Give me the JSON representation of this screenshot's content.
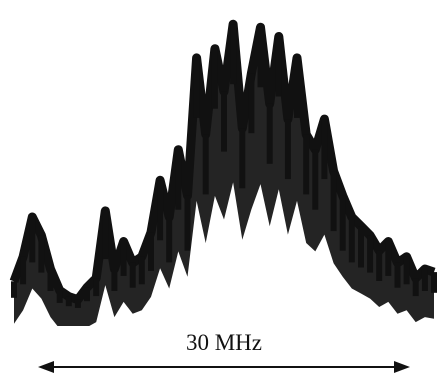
{
  "chart_data": {
    "type": "line",
    "title": "",
    "xlabel": "",
    "ylabel": "",
    "x_axis_visible": false,
    "y_axis_visible": false,
    "grid": false,
    "legend": "none",
    "annotations": [
      {
        "text": "30 MHz",
        "kind": "horizontal double-headed scale arrow"
      }
    ],
    "series": [
      {
        "color": "#111111",
        "style": "thick filled trace",
        "values": [
          0.12,
          0.2,
          0.33,
          0.27,
          0.16,
          0.09,
          0.07,
          0.06,
          0.1,
          0.13,
          0.35,
          0.16,
          0.25,
          0.18,
          0.2,
          0.28,
          0.45,
          0.33,
          0.55,
          0.4,
          0.85,
          0.6,
          0.88,
          0.74,
          0.96,
          0.62,
          0.8,
          0.95,
          0.7,
          0.92,
          0.65,
          0.85,
          0.6,
          0.55,
          0.65,
          0.48,
          0.4,
          0.33,
          0.3,
          0.27,
          0.22,
          0.25,
          0.18,
          0.2,
          0.13,
          0.16,
          0.15
        ]
      }
    ]
  }
}
